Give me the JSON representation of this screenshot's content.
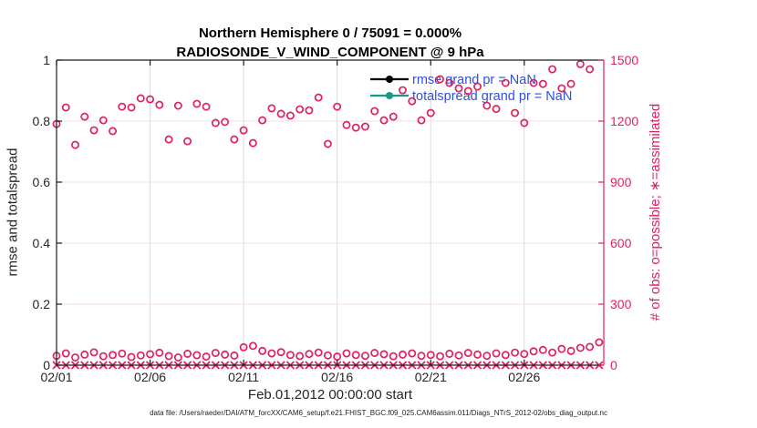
{
  "title": {
    "line1": "Northern Hemisphere 0 / 75091 = 0.000%",
    "line2": "RADIOSONDE_V_WIND_COMPONENT @ 9 hPa"
  },
  "caption": "data file: /Users/raeder/DAI/ATM_forcXX/CAM6_setup/f.e21.FHIST_BGC.f09_025.CAM6assim.011/Diags_NTrS_2012-02/obs_diag_output.nc",
  "axes": {
    "left": {
      "label": "rmse and totalspread",
      "tick_labels": [
        "0",
        "0.2",
        "0.4",
        "0.6",
        "0.8",
        "1"
      ],
      "tick_values": [
        0,
        0.2,
        0.4,
        0.6,
        0.8,
        1
      ],
      "lim": [
        0,
        1
      ],
      "color": "#262626"
    },
    "right": {
      "label": "# of obs: o=possible; ∗=assimilated",
      "tick_labels": [
        "0",
        "300",
        "600",
        "900",
        "1200",
        "1500"
      ],
      "tick_values": [
        0,
        300,
        600,
        900,
        1200,
        1500
      ],
      "lim": [
        0,
        1500
      ],
      "color": "#DF215C"
    },
    "x": {
      "label": "Feb.01,2012 00:00:00 start",
      "tick_labels": [
        "02/01",
        "02/06",
        "02/11",
        "02/16",
        "02/21",
        "02/26"
      ],
      "tick_days": [
        0,
        5,
        10,
        15,
        20,
        25
      ],
      "lim_days": [
        0,
        29.25
      ]
    }
  },
  "legend": {
    "text_color": "#2E4FE0",
    "entries": [
      {
        "label": "rmse grand pr = NaN",
        "color": "#000000"
      },
      {
        "label": "totalspread grand pr = NaN",
        "color": "#16988A"
      }
    ]
  },
  "colors": {
    "marker": "#DF215C",
    "grid_vertical": "#DBDBDB",
    "grid_horizontal": "#F7DCE4",
    "axis_dark": "#1A1A1A"
  },
  "chart_data": {
    "type": "scatter",
    "title": "Northern Hemisphere 0 / 75091 = 0.000% — RADIOSONDE_V_WIND_COMPONENT @ 9 hPa",
    "xlabel": "Feb.01,2012 00:00:00 start",
    "ylabel_left": "rmse and totalspread",
    "ylabel_right": "# of obs: o=possible; ∗=assimilated",
    "x_start_date": "2012-02-01T00:00:00",
    "x_bin_hours": 12,
    "xlim_days": [
      0,
      29.25
    ],
    "ylim_left": [
      0,
      1
    ],
    "ylim_right": [
      0,
      1500
    ],
    "grid": true,
    "legend_position": "top-right-inside",
    "x_days": [
      0,
      0.5,
      1,
      1.5,
      2,
      2.5,
      3,
      3.5,
      4,
      4.5,
      5,
      5.5,
      6,
      6.5,
      7,
      7.5,
      8,
      8.5,
      9,
      9.5,
      10,
      10.5,
      11,
      11.5,
      12,
      12.5,
      13,
      13.5,
      14,
      14.5,
      15,
      15.5,
      16,
      16.5,
      17,
      17.5,
      18,
      18.5,
      19,
      19.5,
      20,
      20.5,
      21,
      21.5,
      22,
      22.5,
      23,
      23.5,
      24,
      24.5,
      25,
      25.5,
      26,
      26.5,
      27,
      27.5,
      28,
      28.5,
      29
    ],
    "series": [
      {
        "name": "observations possible (o)",
        "axis": "right",
        "marker": "o",
        "values": [
          1186,
          1267,
          1083,
          1222,
          1155,
          1204,
          1151,
          1271,
          1267,
          1312,
          1307,
          1280,
          1110,
          1276,
          1101,
          1285,
          1271,
          1191,
          1196,
          1110,
          1155,
          1092,
          1204,
          1263,
          1236,
          1227,
          1258,
          1253,
          1316,
          1088,
          1271,
          1181,
          1168,
          1173,
          1249,
          1204,
          1222,
          1352,
          1298,
          1204,
          1240,
          1406,
          1388,
          1361,
          1348,
          1370,
          1276,
          1260,
          1388,
          1240,
          1191,
          1388,
          1383,
          1455,
          1361,
          1383,
          1480,
          1455,
          null
        ]
      },
      {
        "name": "near-zero circle row (o)",
        "axis": "right",
        "marker": "o",
        "values": [
          46,
          58,
          38,
          52,
          63,
          44,
          50,
          57,
          40,
          48,
          54,
          61,
          45,
          38,
          56,
          49,
          42,
          60,
          52,
          47,
          88,
          95,
          70,
          58,
          64,
          50,
          45,
          55,
          62,
          48,
          42,
          58,
          50,
          46,
          60,
          54,
          44,
          52,
          58,
          46,
          50,
          44,
          56,
          48,
          60,
          52,
          46,
          58,
          50,
          62,
          55,
          68,
          75,
          62,
          80,
          70,
          85,
          90,
          112
        ]
      },
      {
        "name": "observations assimilated (×)",
        "axis": "right",
        "marker": "x",
        "values": [
          0,
          0,
          0,
          0,
          0,
          0,
          0,
          0,
          0,
          0,
          0,
          0,
          0,
          0,
          0,
          0,
          0,
          0,
          0,
          0,
          0,
          0,
          0,
          0,
          0,
          0,
          0,
          0,
          0,
          0,
          0,
          0,
          0,
          0,
          0,
          0,
          0,
          0,
          0,
          0,
          0,
          0,
          0,
          0,
          0,
          0,
          0,
          0,
          0,
          0,
          0,
          0,
          0,
          0,
          0,
          0,
          0,
          0,
          0
        ]
      }
    ]
  }
}
